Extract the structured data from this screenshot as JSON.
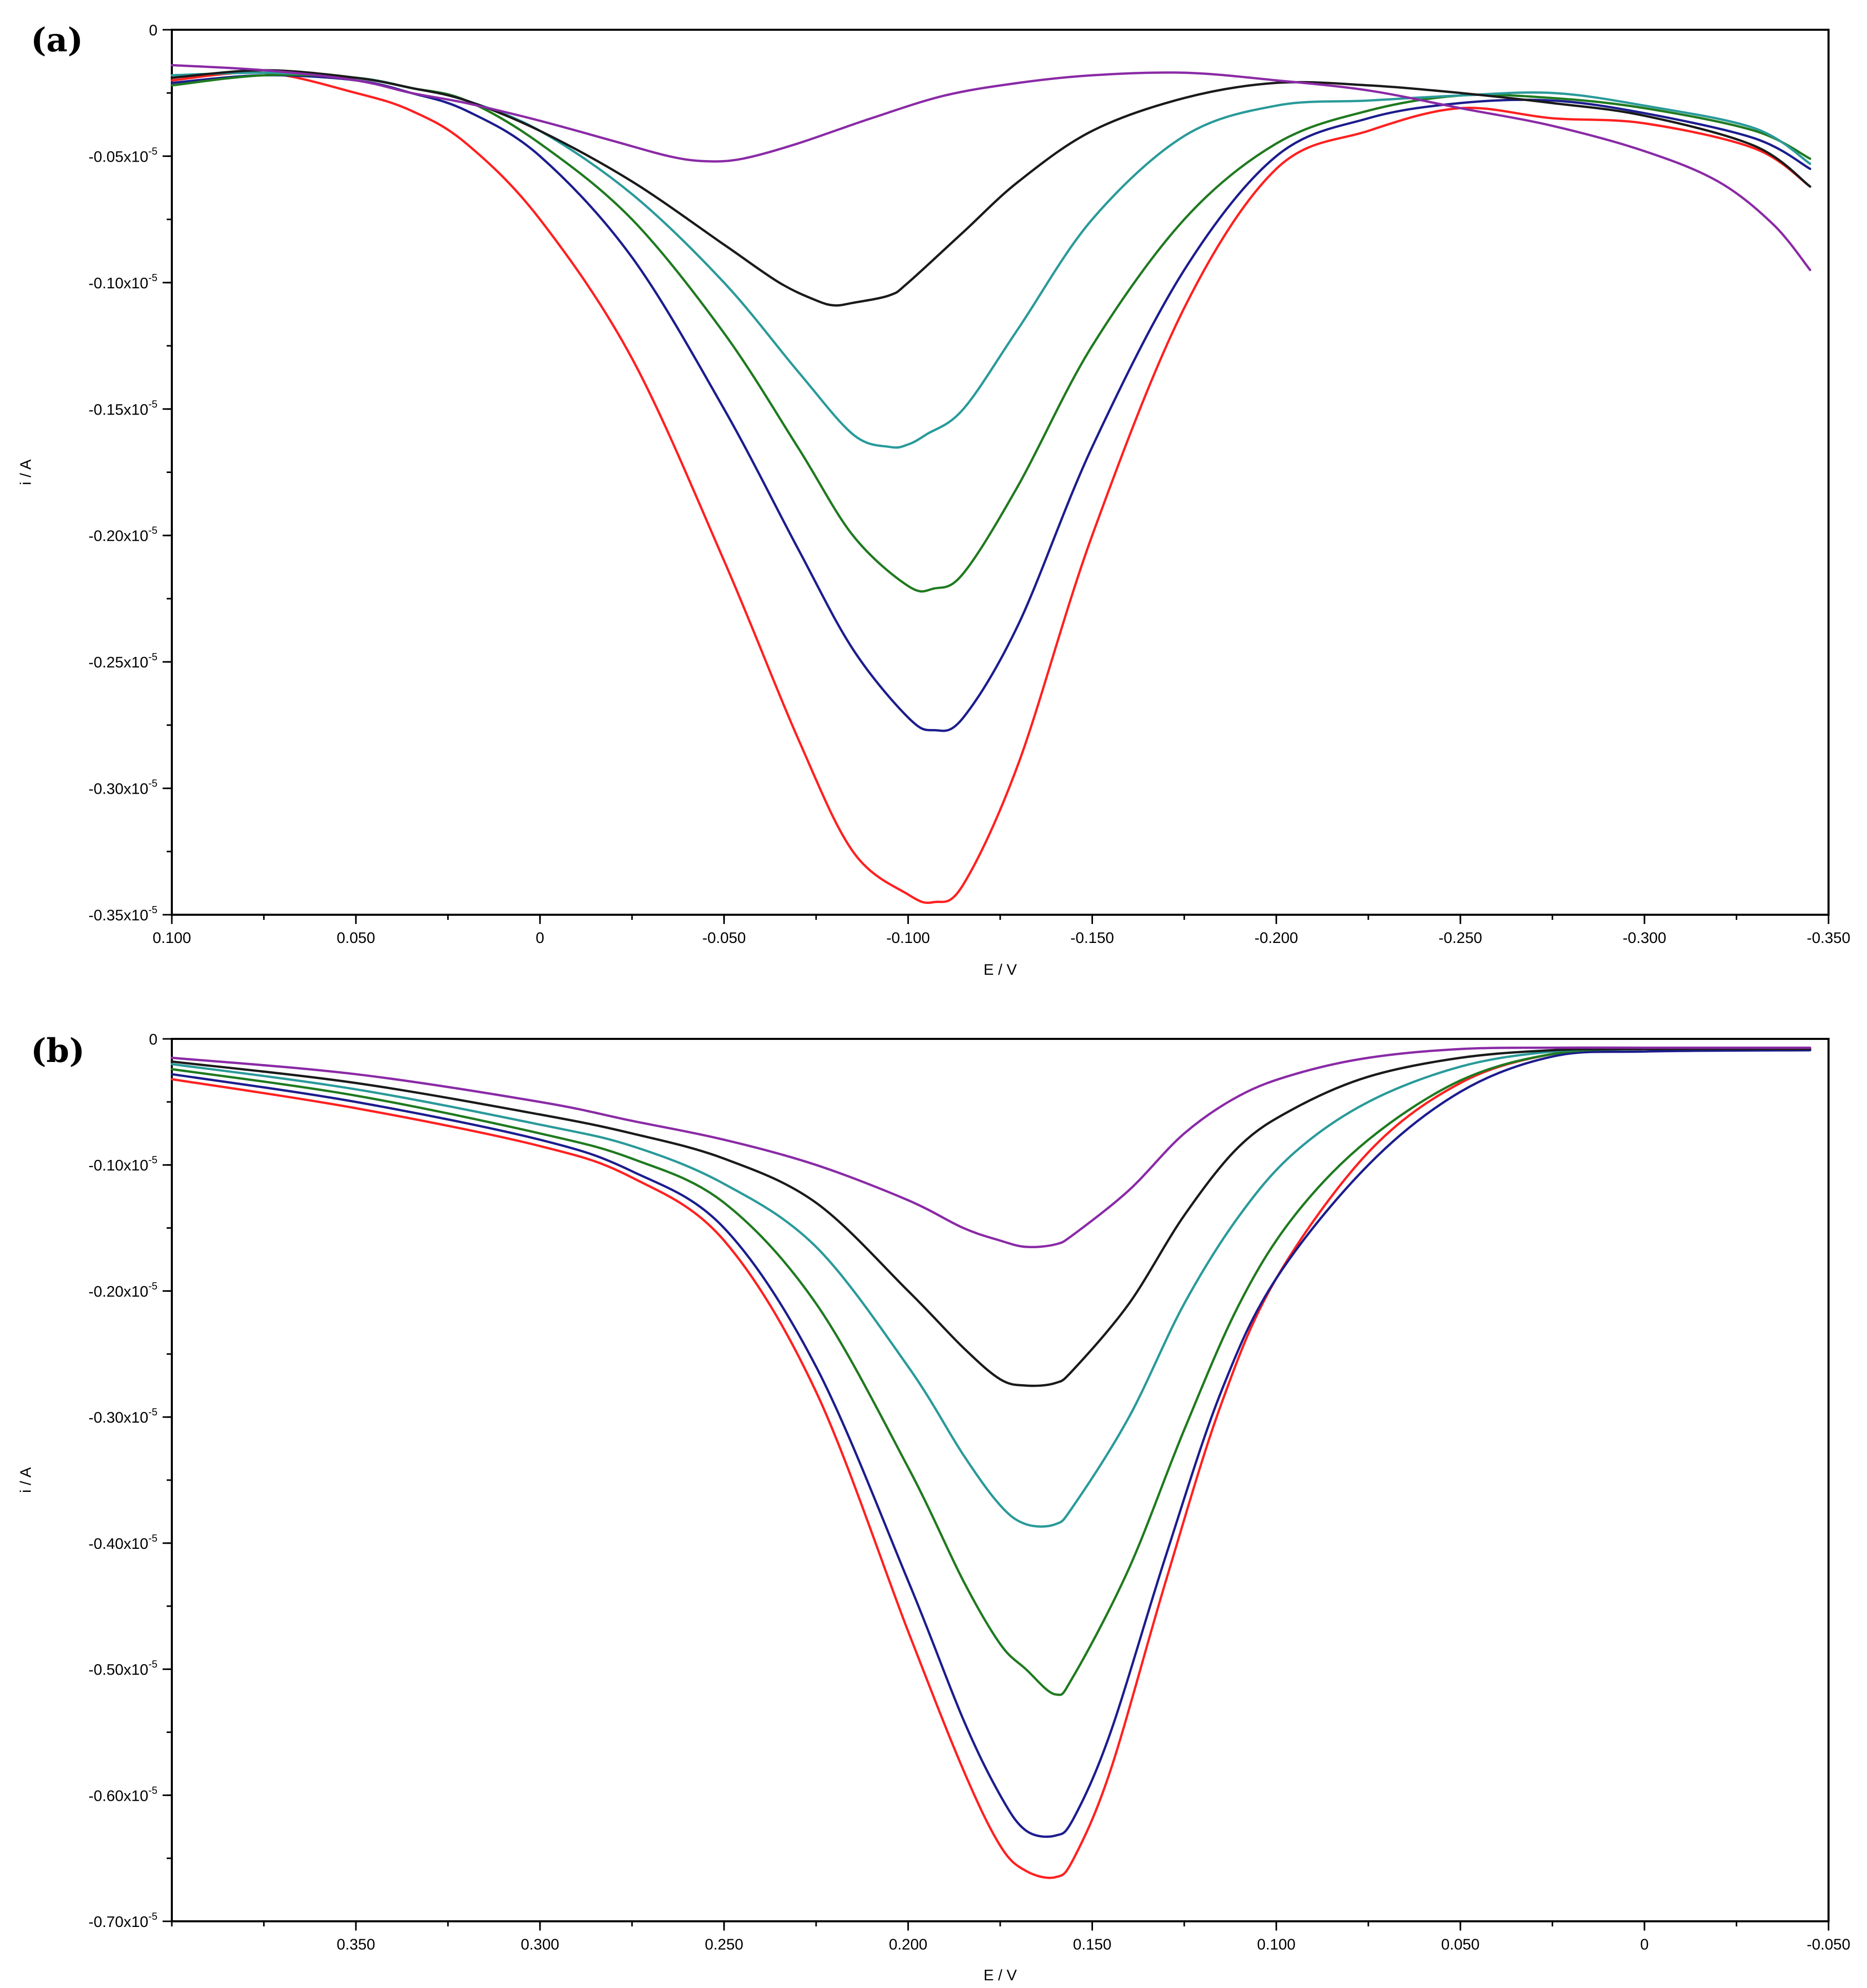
{
  "colors": {
    "red": "#ff2020",
    "blue": "#1c1c8e",
    "green": "#1f7a1f",
    "teal": "#2a9a9a",
    "black": "#1a1a1a",
    "purple": "#8a2aa6"
  },
  "chart_data": [
    {
      "type": "line",
      "panel_label": "(a)",
      "xlabel": "E / V",
      "ylabel": "i / A",
      "xlim": [
        0.1,
        -0.35
      ],
      "ylim": [
        -0.35,
        0
      ],
      "x_ticks": [
        0.1,
        0.05,
        0,
        -0.05,
        -0.1,
        -0.15,
        -0.2,
        -0.25,
        -0.3,
        -0.35
      ],
      "x_tick_labels": [
        "0.100",
        "0.050",
        "0",
        "-0.050",
        "-0.100",
        "-0.150",
        "-0.200",
        "-0.250",
        "-0.300",
        "-0.350"
      ],
      "y_ticks": [
        0,
        -0.05,
        -0.1,
        -0.15,
        -0.2,
        -0.25,
        -0.3,
        -0.35
      ],
      "y_tick_labels": [
        "0",
        "-0.05x10",
        "-0.10x10",
        "-0.15x10",
        "-0.20x10",
        "-0.25x10",
        "-0.30x10",
        "-0.35x10"
      ],
      "y_tick_exponent": "-5",
      "series": [
        {
          "color": "red",
          "x": [
            0.1,
            0.075,
            0.05,
            0.035,
            0.02,
            0.0,
            -0.025,
            -0.05,
            -0.07,
            -0.085,
            -0.1,
            -0.107,
            -0.115,
            -0.13,
            -0.15,
            -0.175,
            -0.2,
            -0.225,
            -0.25,
            -0.275,
            -0.3,
            -0.33,
            -0.345
          ],
          "y": [
            -0.02,
            -0.017,
            -0.025,
            -0.032,
            -0.045,
            -0.075,
            -0.13,
            -0.21,
            -0.28,
            -0.325,
            -0.342,
            -0.345,
            -0.338,
            -0.29,
            -0.2,
            -0.11,
            -0.055,
            -0.04,
            -0.031,
            -0.035,
            -0.037,
            -0.047,
            -0.062
          ]
        },
        {
          "color": "blue",
          "x": [
            0.1,
            0.075,
            0.05,
            0.035,
            0.02,
            0.0,
            -0.025,
            -0.05,
            -0.07,
            -0.085,
            -0.1,
            -0.107,
            -0.115,
            -0.13,
            -0.15,
            -0.175,
            -0.2,
            -0.225,
            -0.25,
            -0.275,
            -0.3,
            -0.33,
            -0.345
          ],
          "y": [
            -0.021,
            -0.018,
            -0.02,
            -0.025,
            -0.032,
            -0.05,
            -0.09,
            -0.15,
            -0.205,
            -0.245,
            -0.272,
            -0.277,
            -0.272,
            -0.235,
            -0.165,
            -0.095,
            -0.05,
            -0.035,
            -0.029,
            -0.028,
            -0.033,
            -0.043,
            -0.055
          ]
        },
        {
          "color": "green",
          "x": [
            0.1,
            0.075,
            0.05,
            0.035,
            0.02,
            0.0,
            -0.025,
            -0.05,
            -0.07,
            -0.085,
            -0.1,
            -0.107,
            -0.115,
            -0.13,
            -0.15,
            -0.175,
            -0.2,
            -0.225,
            -0.25,
            -0.275,
            -0.3,
            -0.33,
            -0.345
          ],
          "y": [
            -0.022,
            -0.018,
            -0.019,
            -0.023,
            -0.028,
            -0.045,
            -0.075,
            -0.12,
            -0.165,
            -0.2,
            -0.22,
            -0.221,
            -0.215,
            -0.18,
            -0.125,
            -0.075,
            -0.045,
            -0.032,
            -0.026,
            -0.027,
            -0.031,
            -0.04,
            -0.051
          ]
        },
        {
          "color": "teal",
          "x": [
            0.1,
            0.075,
            0.05,
            0.035,
            0.02,
            0.0,
            -0.025,
            -0.05,
            -0.07,
            -0.085,
            -0.095,
            -0.1,
            -0.105,
            -0.115,
            -0.13,
            -0.15,
            -0.175,
            -0.2,
            -0.225,
            -0.25,
            -0.275,
            -0.3,
            -0.33,
            -0.345
          ],
          "y": [
            -0.018,
            -0.017,
            -0.019,
            -0.023,
            -0.028,
            -0.04,
            -0.065,
            -0.1,
            -0.135,
            -0.16,
            -0.165,
            -0.164,
            -0.16,
            -0.15,
            -0.118,
            -0.075,
            -0.042,
            -0.03,
            -0.028,
            -0.026,
            -0.025,
            -0.03,
            -0.039,
            -0.053
          ]
        },
        {
          "color": "black",
          "x": [
            0.1,
            0.075,
            0.05,
            0.035,
            0.02,
            0.0,
            -0.025,
            -0.05,
            -0.065,
            -0.075,
            -0.08,
            -0.085,
            -0.095,
            -0.1,
            -0.115,
            -0.13,
            -0.15,
            -0.175,
            -0.2,
            -0.225,
            -0.25,
            -0.275,
            -0.3,
            -0.33,
            -0.345
          ],
          "y": [
            -0.019,
            -0.016,
            -0.019,
            -0.023,
            -0.028,
            -0.04,
            -0.06,
            -0.085,
            -0.1,
            -0.107,
            -0.109,
            -0.108,
            -0.105,
            -0.1,
            -0.08,
            -0.06,
            -0.04,
            -0.027,
            -0.021,
            -0.022,
            -0.025,
            -0.029,
            -0.034,
            -0.046,
            -0.062
          ]
        },
        {
          "color": "purple",
          "x": [
            0.1,
            0.075,
            0.05,
            0.035,
            0.02,
            0.0,
            -0.02,
            -0.035,
            -0.045,
            -0.055,
            -0.07,
            -0.09,
            -0.11,
            -0.13,
            -0.15,
            -0.175,
            -0.2,
            -0.225,
            -0.25,
            -0.275,
            -0.3,
            -0.32,
            -0.335,
            -0.345
          ],
          "y": [
            -0.014,
            -0.016,
            -0.02,
            -0.025,
            -0.029,
            -0.036,
            -0.044,
            -0.05,
            -0.052,
            -0.051,
            -0.045,
            -0.035,
            -0.026,
            -0.021,
            -0.018,
            -0.017,
            -0.02,
            -0.024,
            -0.031,
            -0.038,
            -0.048,
            -0.06,
            -0.077,
            -0.095
          ]
        }
      ]
    },
    {
      "type": "line",
      "panel_label": "(b)",
      "xlabel": "E / V",
      "ylabel": "i / A",
      "xlim": [
        0.4,
        -0.05
      ],
      "ylim": [
        -0.7,
        0
      ],
      "x_ticks": [
        0.35,
        0.3,
        0.25,
        0.2,
        0.15,
        0.1,
        0.05,
        0,
        -0.05
      ],
      "x_tick_labels": [
        "0.350",
        "0.300",
        "0.250",
        "0.200",
        "0.150",
        "0.100",
        "0.050",
        "0",
        "-0.050"
      ],
      "y_ticks": [
        0,
        -0.1,
        -0.2,
        -0.3,
        -0.4,
        -0.5,
        -0.6,
        -0.7
      ],
      "y_tick_labels": [
        "0",
        "-0.10x10",
        "-0.20x10",
        "-0.30x10",
        "-0.40x10",
        "-0.50x10",
        "-0.60x10",
        "-0.70x10"
      ],
      "y_tick_exponent": "-5",
      "series": [
        {
          "color": "red",
          "x": [
            0.4,
            0.35,
            0.3,
            0.275,
            0.25,
            0.225,
            0.2,
            0.185,
            0.175,
            0.168,
            0.16,
            0.155,
            0.145,
            0.13,
            0.115,
            0.1,
            0.075,
            0.05,
            0.025,
            0.0,
            -0.045
          ],
          "y": [
            -0.032,
            -0.055,
            -0.085,
            -0.11,
            -0.16,
            -0.28,
            -0.47,
            -0.58,
            -0.64,
            -0.66,
            -0.665,
            -0.65,
            -0.58,
            -0.43,
            -0.29,
            -0.19,
            -0.09,
            -0.035,
            -0.012,
            -0.008,
            -0.008
          ]
        },
        {
          "color": "blue",
          "x": [
            0.4,
            0.35,
            0.3,
            0.275,
            0.25,
            0.225,
            0.2,
            0.185,
            0.175,
            0.168,
            0.16,
            0.155,
            0.145,
            0.13,
            0.115,
            0.1,
            0.075,
            0.05,
            0.025,
            0.0,
            -0.045
          ],
          "y": [
            -0.028,
            -0.05,
            -0.08,
            -0.105,
            -0.15,
            -0.26,
            -0.43,
            -0.54,
            -0.6,
            -0.628,
            -0.632,
            -0.618,
            -0.55,
            -0.41,
            -0.28,
            -0.19,
            -0.1,
            -0.042,
            -0.014,
            -0.01,
            -0.009
          ]
        },
        {
          "color": "green",
          "x": [
            0.4,
            0.35,
            0.3,
            0.275,
            0.25,
            0.225,
            0.2,
            0.185,
            0.175,
            0.168,
            0.16,
            0.155,
            0.14,
            0.125,
            0.11,
            0.095,
            0.075,
            0.05,
            0.025,
            0.0,
            -0.045
          ],
          "y": [
            -0.024,
            -0.045,
            -0.075,
            -0.095,
            -0.13,
            -0.21,
            -0.34,
            -0.43,
            -0.48,
            -0.5,
            -0.52,
            -0.505,
            -0.42,
            -0.31,
            -0.21,
            -0.14,
            -0.08,
            -0.033,
            -0.012,
            -0.008,
            -0.008
          ]
        },
        {
          "color": "teal",
          "x": [
            0.4,
            0.35,
            0.3,
            0.275,
            0.25,
            0.225,
            0.2,
            0.185,
            0.175,
            0.168,
            0.16,
            0.155,
            0.14,
            0.125,
            0.11,
            0.095,
            0.075,
            0.05,
            0.025,
            0.0,
            -0.045
          ],
          "y": [
            -0.02,
            -0.04,
            -0.068,
            -0.085,
            -0.115,
            -0.165,
            -0.26,
            -0.33,
            -0.37,
            -0.385,
            -0.385,
            -0.37,
            -0.3,
            -0.21,
            -0.14,
            -0.09,
            -0.05,
            -0.022,
            -0.01,
            -0.008,
            -0.008
          ]
        },
        {
          "color": "black",
          "x": [
            0.4,
            0.35,
            0.3,
            0.275,
            0.25,
            0.225,
            0.2,
            0.185,
            0.175,
            0.168,
            0.16,
            0.155,
            0.14,
            0.125,
            0.11,
            0.095,
            0.075,
            0.05,
            0.025,
            0.0,
            -0.045
          ],
          "y": [
            -0.018,
            -0.035,
            -0.06,
            -0.075,
            -0.095,
            -0.13,
            -0.2,
            -0.245,
            -0.27,
            -0.275,
            -0.273,
            -0.262,
            -0.21,
            -0.14,
            -0.085,
            -0.055,
            -0.03,
            -0.015,
            -0.009,
            -0.008,
            -0.008
          ]
        },
        {
          "color": "purple",
          "x": [
            0.4,
            0.35,
            0.3,
            0.275,
            0.25,
            0.225,
            0.2,
            0.185,
            0.175,
            0.168,
            0.16,
            0.155,
            0.14,
            0.125,
            0.11,
            0.095,
            0.075,
            0.05,
            0.025,
            0.0,
            -0.045
          ],
          "y": [
            -0.015,
            -0.028,
            -0.05,
            -0.065,
            -0.08,
            -0.1,
            -0.128,
            -0.15,
            -0.16,
            -0.165,
            -0.163,
            -0.155,
            -0.12,
            -0.075,
            -0.045,
            -0.028,
            -0.015,
            -0.008,
            -0.007,
            -0.007,
            -0.007
          ]
        }
      ]
    }
  ]
}
